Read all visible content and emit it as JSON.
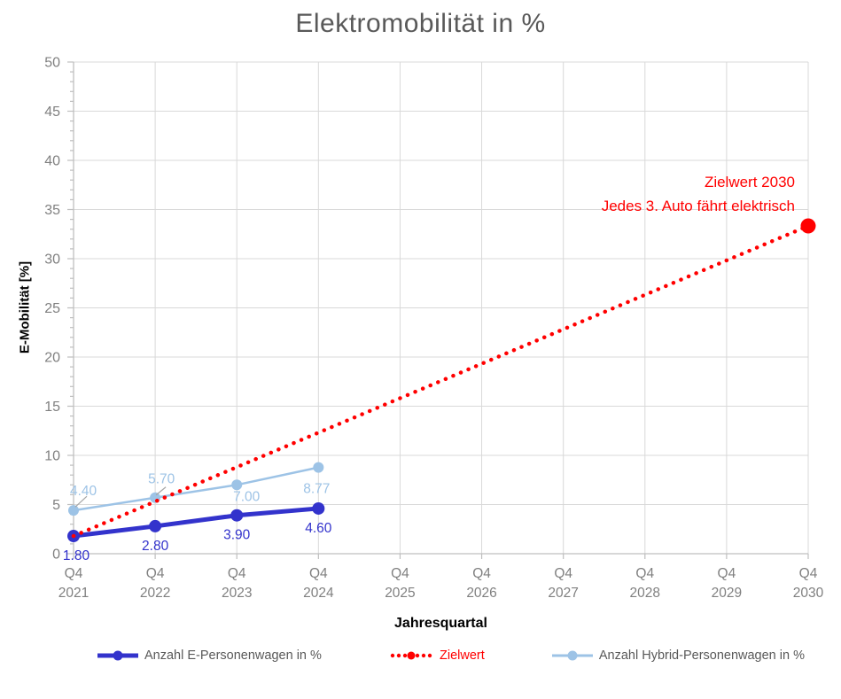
{
  "chart_data": {
    "type": "line",
    "title": "Elektromobilität in %",
    "xlabel": "Jahresquartal",
    "ylabel": "E-Mobilität [%]",
    "ylim": [
      0,
      50
    ],
    "ytick_step": 5,
    "ytick_minor_step": 1,
    "grid": true,
    "legend_position": "bottom",
    "categories": [
      {
        "q": "Q4",
        "year": "2021"
      },
      {
        "q": "Q4",
        "year": "2022"
      },
      {
        "q": "Q4",
        "year": "2023"
      },
      {
        "q": "Q4",
        "year": "2024"
      },
      {
        "q": "Q4",
        "year": "2025"
      },
      {
        "q": "Q4",
        "year": "2026"
      },
      {
        "q": "Q4",
        "year": "2027"
      },
      {
        "q": "Q4",
        "year": "2028"
      },
      {
        "q": "Q4",
        "year": "2029"
      },
      {
        "q": "Q4",
        "year": "2030"
      }
    ],
    "series": [
      {
        "key": "e",
        "name": "Anzahl E-Personenwagen in %",
        "color": "#3333CC",
        "line_style": "solid",
        "values": [
          1.8,
          2.8,
          3.9,
          4.6
        ],
        "labels": [
          "1.80",
          "2.80",
          "3.90",
          "4.60"
        ],
        "legend_text_color": "#595959"
      },
      {
        "key": "ziel",
        "name": "Zielwert",
        "color": "#FF0000",
        "line_style": "dotted",
        "start_index": 0,
        "start_value": 1.8,
        "end_index": 9,
        "end_value": 33.33,
        "end_marker": true,
        "legend_text_color": "#FF0000"
      },
      {
        "key": "hybrid",
        "name": "Anzahl Hybrid-Personenwagen in %",
        "color": "#9DC3E6",
        "line_style": "solid",
        "values": [
          4.4,
          5.7,
          7.0,
          8.77
        ],
        "labels": [
          "4.40",
          "5.70",
          "7.00",
          "8.77"
        ],
        "legend_text_color": "#595959"
      }
    ],
    "annotation": {
      "lines": [
        "Zielwert 2030",
        "Jedes 3. Auto fährt elektrisch"
      ],
      "color": "#FF0000"
    },
    "colors": {
      "grid": "#D9D9D9",
      "axis": "#BFBFBF",
      "tick_text": "#808080",
      "leader_line": "#A6A6A6",
      "title_text": "#595959"
    }
  }
}
